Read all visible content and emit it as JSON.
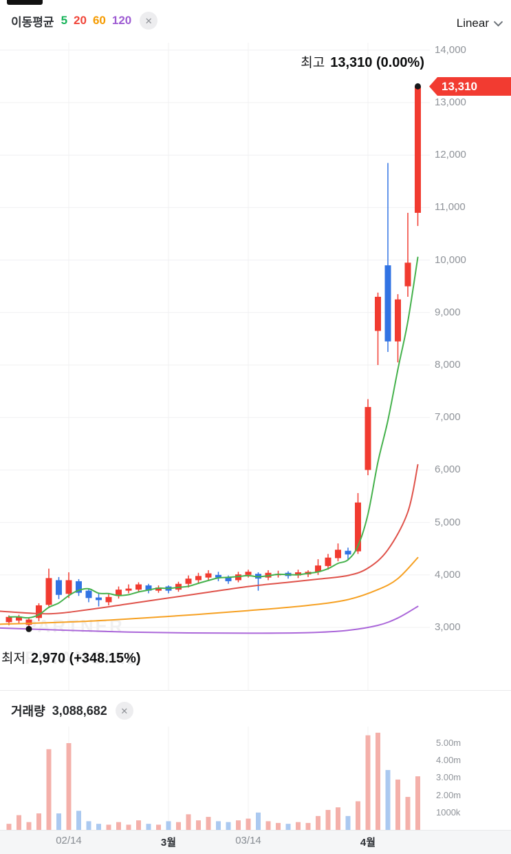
{
  "header": {
    "legend_title": "이동평균",
    "mas": [
      {
        "label": "5",
        "color": "#15b358"
      },
      {
        "label": "20",
        "color": "#f04438"
      },
      {
        "label": "60",
        "color": "#f59b00"
      },
      {
        "label": "120",
        "color": "#9d5bd2"
      }
    ],
    "close_icon": "✕",
    "scale_selector": "Linear"
  },
  "annotations": {
    "high_label": "최고",
    "high_value": "13,310 (0.00%)",
    "low_label": "최저",
    "low_value": "2,970 (+348.15%)",
    "current_price_badge": "13,310"
  },
  "volume_header": {
    "title": "거래량",
    "value": "3,088,682",
    "close_icon": "✕"
  },
  "watermark": {
    "line1": "PARTNER",
    "line2": "FINANCIAL"
  },
  "chart_data": {
    "type": "candlestick",
    "scale": "Linear",
    "price_axis": {
      "ticks": [
        {
          "label": "14,000",
          "value": 14000
        },
        {
          "label": "13,000",
          "value": 13000
        },
        {
          "label": "12,000",
          "value": 12000
        },
        {
          "label": "11,000",
          "value": 11000
        },
        {
          "label": "10,000",
          "value": 10000
        },
        {
          "label": "9,000",
          "value": 9000
        },
        {
          "label": "8,000",
          "value": 8000
        },
        {
          "label": "7,000",
          "value": 7000
        },
        {
          "label": "6,000",
          "value": 6000
        },
        {
          "label": "5,000",
          "value": 5000
        },
        {
          "label": "4,000",
          "value": 4000
        },
        {
          "label": "3,000",
          "value": 3000
        }
      ]
    },
    "volume_axis": {
      "ticks": [
        {
          "label": "5.00m",
          "value_m": 5
        },
        {
          "label": "4.00m",
          "value_m": 4
        },
        {
          "label": "3.00m",
          "value_m": 3
        },
        {
          "label": "2.00m",
          "value_m": 2
        },
        {
          "label": "1000k",
          "value_m": 1
        }
      ]
    },
    "x_ticks": [
      {
        "label": "02/14",
        "index": 6,
        "bold": false
      },
      {
        "label": "3월",
        "index": 16,
        "bold": true
      },
      {
        "label": "03/14",
        "index": 24,
        "bold": false
      },
      {
        "label": "4월",
        "index": 36,
        "bold": true
      }
    ],
    "candles_ohlc": [
      [
        3100,
        3230,
        3040,
        3200
      ],
      [
        3130,
        3240,
        3060,
        3200
      ],
      [
        3050,
        3190,
        2970,
        3150
      ],
      [
        3180,
        3460,
        3120,
        3420
      ],
      [
        3430,
        4120,
        3400,
        3940
      ],
      [
        3900,
        3960,
        3540,
        3620
      ],
      [
        3640,
        4050,
        3560,
        3900
      ],
      [
        3880,
        3920,
        3600,
        3660
      ],
      [
        3700,
        3740,
        3480,
        3560
      ],
      [
        3570,
        3650,
        3400,
        3520
      ],
      [
        3480,
        3640,
        3420,
        3580
      ],
      [
        3600,
        3780,
        3550,
        3720
      ],
      [
        3700,
        3820,
        3650,
        3740
      ],
      [
        3720,
        3860,
        3680,
        3820
      ],
      [
        3800,
        3830,
        3650,
        3700
      ],
      [
        3700,
        3800,
        3660,
        3760
      ],
      [
        3780,
        3800,
        3650,
        3700
      ],
      [
        3720,
        3870,
        3680,
        3830
      ],
      [
        3830,
        3990,
        3760,
        3930
      ],
      [
        3900,
        4040,
        3850,
        3980
      ],
      [
        3950,
        4090,
        3900,
        4030
      ],
      [
        4000,
        4060,
        3880,
        3950
      ],
      [
        3960,
        3990,
        3830,
        3880
      ],
      [
        3900,
        4060,
        3860,
        4010
      ],
      [
        4000,
        4100,
        3950,
        4060
      ],
      [
        4020,
        4050,
        3700,
        3930
      ],
      [
        3950,
        4090,
        3900,
        4040
      ],
      [
        4000,
        4080,
        3950,
        4020
      ],
      [
        4040,
        4070,
        3930,
        3980
      ],
      [
        3990,
        4100,
        3940,
        4050
      ],
      [
        4010,
        4090,
        3960,
        4060
      ],
      [
        4060,
        4300,
        4000,
        4180
      ],
      [
        4170,
        4400,
        4100,
        4330
      ],
      [
        4320,
        4600,
        4260,
        4480
      ],
      [
        4460,
        4520,
        4300,
        4390
      ],
      [
        4450,
        5560,
        4400,
        5380
      ],
      [
        6000,
        7350,
        5900,
        7200
      ],
      [
        8650,
        9380,
        8000,
        9300
      ],
      [
        9900,
        11850,
        8250,
        8450
      ],
      [
        8450,
        9350,
        8050,
        9250
      ],
      [
        9500,
        10900,
        9300,
        9950
      ],
      [
        10900,
        13310,
        10650,
        13310
      ]
    ],
    "volumes_m": [
      0.35,
      0.85,
      0.45,
      0.95,
      4.65,
      0.95,
      5.0,
      1.1,
      0.5,
      0.35,
      0.3,
      0.45,
      0.3,
      0.55,
      0.35,
      0.3,
      0.5,
      0.45,
      0.9,
      0.55,
      0.75,
      0.5,
      0.45,
      0.55,
      0.65,
      1.0,
      0.5,
      0.4,
      0.35,
      0.45,
      0.4,
      0.8,
      1.15,
      1.3,
      0.8,
      1.65,
      5.45,
      5.6,
      3.45,
      2.9,
      1.9,
      3.088682
    ],
    "high_marker": {
      "index": 41,
      "price": 13310
    },
    "low_marker": {
      "index": 2,
      "price": 2970
    },
    "moving_averages": {
      "ma5": {
        "period": 5,
        "color": "#44b14b",
        "computed_from_closes": true
      },
      "ma20": {
        "period": 20,
        "color": "#df5149",
        "points": [
          [
            -1,
            3310
          ],
          [
            4,
            3260
          ],
          [
            8,
            3340
          ],
          [
            12,
            3450
          ],
          [
            16,
            3560
          ],
          [
            20,
            3670
          ],
          [
            24,
            3780
          ],
          [
            28,
            3860
          ],
          [
            31,
            3920
          ],
          [
            34,
            3990
          ],
          [
            36,
            4130
          ],
          [
            38,
            4480
          ],
          [
            40,
            5200
          ],
          [
            41,
            6100
          ]
        ]
      },
      "ma60": {
        "period": 60,
        "color": "#f6a021",
        "points": [
          [
            -1,
            3060
          ],
          [
            8,
            3120
          ],
          [
            16,
            3210
          ],
          [
            24,
            3320
          ],
          [
            30,
            3420
          ],
          [
            34,
            3530
          ],
          [
            37,
            3720
          ],
          [
            39,
            3930
          ],
          [
            41,
            4330
          ]
        ]
      },
      "ma120": {
        "period": 120,
        "color": "#aa66d9",
        "points": [
          [
            -1,
            2990
          ],
          [
            6,
            2945
          ],
          [
            12,
            2912
          ],
          [
            18,
            2895
          ],
          [
            24,
            2890
          ],
          [
            30,
            2900
          ],
          [
            34,
            2945
          ],
          [
            37,
            3040
          ],
          [
            39,
            3180
          ],
          [
            41,
            3400
          ]
        ]
      }
    },
    "colors": {
      "up_candle": "#f13b30",
      "down_candle": "#3173e3",
      "volume_up": "#f4b0aa",
      "volume_down": "#abc9f0",
      "grid": "#f0f0f2",
      "marker_dot": "#17181a",
      "badge": "#f23b31"
    }
  }
}
